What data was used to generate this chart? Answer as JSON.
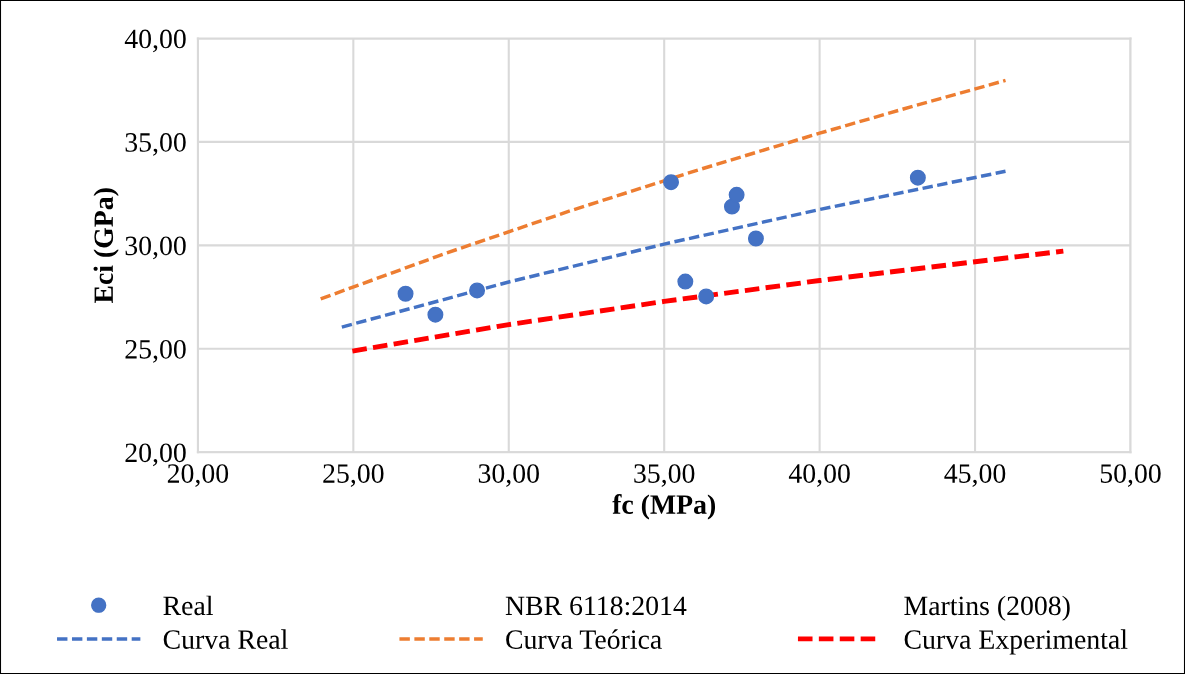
{
  "chart_data": {
    "type": "scatter",
    "xlabel": "fc (MPa)",
    "ylabel": "Eci (GPa)",
    "xlim": [
      20,
      50
    ],
    "ylim": [
      20,
      40
    ],
    "xticks": [
      {
        "value": 20,
        "label": "20,00"
      },
      {
        "value": 25,
        "label": "25,00"
      },
      {
        "value": 30,
        "label": "30,00"
      },
      {
        "value": 35,
        "label": "35,00"
      },
      {
        "value": 40,
        "label": "40,00"
      },
      {
        "value": 45,
        "label": "45,00"
      },
      {
        "value": 50,
        "label": "50,00"
      }
    ],
    "yticks": [
      {
        "value": 20,
        "label": "20,00"
      },
      {
        "value": 25,
        "label": "25,00"
      },
      {
        "value": 30,
        "label": "30,00"
      },
      {
        "value": 35,
        "label": "35,00"
      },
      {
        "value": 40,
        "label": "40,00"
      }
    ],
    "grid": true,
    "legend": "bottom",
    "annotations": [
      "NBR 6118:2014",
      "Martins (2008)"
    ],
    "series": [
      {
        "name": "Real",
        "color": "#4472c4",
        "marker": "circle",
        "x": [
          26.68,
          27.64,
          28.98,
          35.22,
          35.68,
          36.35,
          37.18,
          37.33,
          37.95,
          43.16
        ],
        "values": [
          27.66,
          26.65,
          27.82,
          33.05,
          28.25,
          27.53,
          31.87,
          32.44,
          30.33,
          33.27
        ]
      },
      {
        "name": "Curva Real",
        "type": "line",
        "color": "#4472c4",
        "line_style": "dashed",
        "x": [
          24.63,
          30,
          35,
          40,
          45.98
        ],
        "values": [
          26.05,
          28.23,
          30.06,
          31.73,
          33.58
        ]
      },
      {
        "name": "Curva Teórica",
        "type": "line",
        "color": "#ed7d31",
        "line_style": "dashed",
        "x": [
          23.95,
          28,
          32,
          36,
          40,
          43,
          45.98
        ],
        "values": [
          27.41,
          29.63,
          31.68,
          33.6,
          35.42,
          36.72,
          37.97
        ]
      },
      {
        "name": "Curva Experimental",
        "type": "line",
        "color": "#ff0000",
        "line_style": "dashed",
        "x": [
          24.97,
          30,
          35,
          40,
          47.84
        ],
        "values": [
          24.89,
          26.17,
          27.29,
          28.3,
          29.72
        ]
      }
    ]
  }
}
